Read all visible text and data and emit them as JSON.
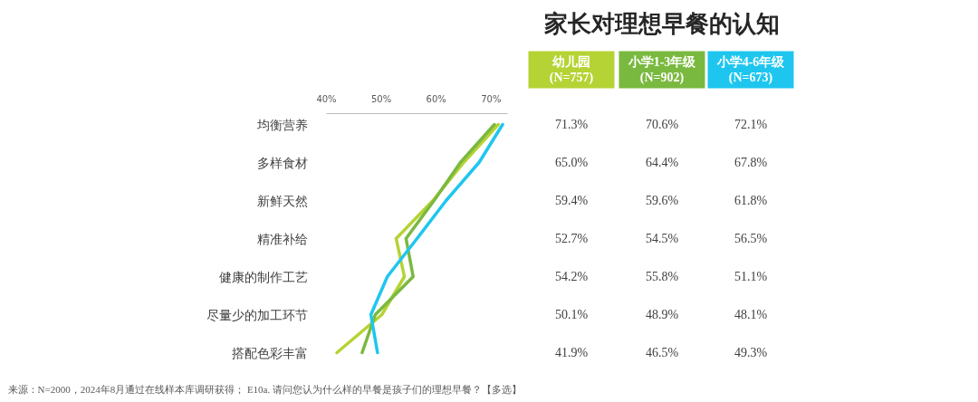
{
  "chart_data": {
    "type": "line",
    "orientation": "horizontal",
    "title": "家长对理想早餐的认知",
    "categories": [
      "均衡营养",
      "多样食材",
      "新鲜天然",
      "精准补给",
      "健康的制作工艺",
      "尽量少的加工环节",
      "搭配色彩丰富"
    ],
    "xlim": [
      40,
      73
    ],
    "xticks": [
      {
        "value": 40,
        "label": "40%"
      },
      {
        "value": 50,
        "label": "50%"
      },
      {
        "value": 60,
        "label": "60%"
      },
      {
        "value": 70,
        "label": "70%"
      }
    ],
    "series": [
      {
        "name": "幼儿园\n(N=757)",
        "color": "#b5d334",
        "values": [
          71.3,
          65.0,
          59.4,
          52.7,
          54.2,
          50.1,
          41.9
        ],
        "value_labels": [
          "71.3%",
          "65.0%",
          "59.4%",
          "52.7%",
          "54.2%",
          "50.1%",
          "41.9%"
        ]
      },
      {
        "name": "小学1-3年级\n(N=902)",
        "color": "#7ab93f",
        "values": [
          70.6,
          64.4,
          59.6,
          54.5,
          55.8,
          48.9,
          46.5
        ],
        "value_labels": [
          "70.6%",
          "64.4%",
          "59.6%",
          "54.5%",
          "55.8%",
          "48.9%",
          "46.5%"
        ]
      },
      {
        "name": "小学4-6年级\n(N=673)",
        "color": "#1ec6ef",
        "values": [
          72.1,
          67.8,
          61.8,
          56.5,
          51.1,
          48.1,
          49.3
        ],
        "value_labels": [
          "72.1%",
          "67.8%",
          "61.8%",
          "56.5%",
          "51.1%",
          "48.1%",
          "49.3%"
        ]
      }
    ],
    "grid": false,
    "marker": "none",
    "line_style": "solid",
    "annotations": [
      "来源：N=2000，2024年8月通过在线样本库调研获得； E10a. 请问您认为什么样的早餐是孩子们的理想早餐？【多选】"
    ]
  }
}
